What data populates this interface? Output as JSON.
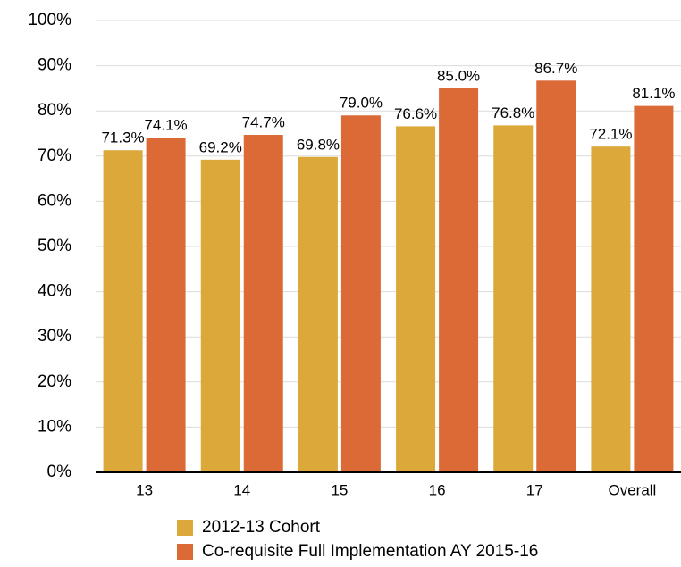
{
  "chart_data": {
    "type": "bar",
    "categories": [
      "13",
      "14",
      "15",
      "16",
      "17",
      "Overall"
    ],
    "series": [
      {
        "name": "2012-13 Cohort",
        "color": "#dca83a",
        "values": [
          71.3,
          69.2,
          69.8,
          76.6,
          76.8,
          72.1
        ],
        "value_labels": [
          "71.3%",
          "69.2%",
          "69.8%",
          "76.6%",
          "76.8%",
          "72.1%"
        ]
      },
      {
        "name": "Co-requisite Full Implementation AY 2015-16",
        "color": "#dc6a37",
        "values": [
          74.1,
          74.7,
          79.0,
          85.0,
          86.7,
          81.1
        ],
        "value_labels": [
          "74.1%",
          "74.7%",
          "79.0%",
          "85.0%",
          "86.7%",
          "81.1%"
        ]
      }
    ],
    "ylim": [
      0,
      100
    ],
    "yticks": [
      {
        "value": 0,
        "label": "0%"
      },
      {
        "value": 10,
        "label": "10%"
      },
      {
        "value": 20,
        "label": "20%"
      },
      {
        "value": 30,
        "label": "30%"
      },
      {
        "value": 40,
        "label": "40%"
      },
      {
        "value": 50,
        "label": "50%"
      },
      {
        "value": 60,
        "label": "60%"
      },
      {
        "value": 70,
        "label": "70%"
      },
      {
        "value": 80,
        "label": "80%"
      },
      {
        "value": 90,
        "label": "90%"
      },
      {
        "value": 100,
        "label": "100%"
      }
    ],
    "grid": true,
    "legend": "bottom"
  }
}
